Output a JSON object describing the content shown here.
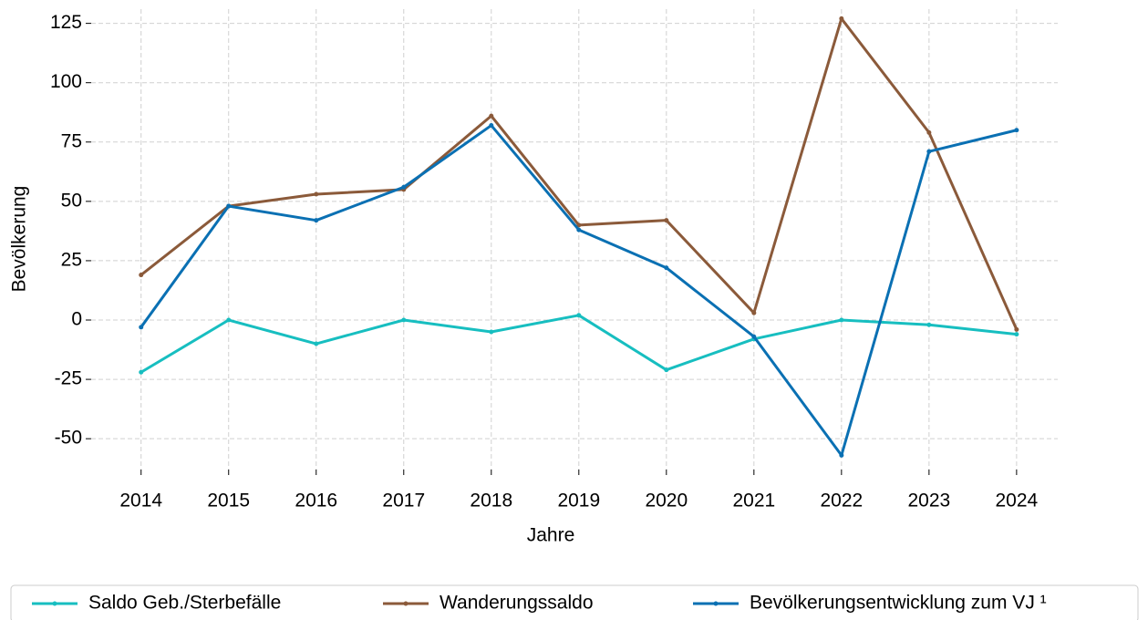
{
  "chart_data": {
    "type": "line",
    "xlabel": "Jahre",
    "ylabel": "Bevölkerung",
    "x": [
      2014,
      2015,
      2016,
      2017,
      2018,
      2019,
      2020,
      2021,
      2022,
      2023,
      2024
    ],
    "series": [
      {
        "name": "Saldo Geb./Sterbefälle",
        "color": "#17bec0",
        "values": [
          -22,
          0,
          -10,
          0,
          -5,
          2,
          -21,
          -8,
          0,
          -2,
          -6
        ]
      },
      {
        "name": "Wanderungssaldo",
        "color": "#8b5a3a",
        "values": [
          19,
          48,
          53,
          55,
          86,
          40,
          42,
          3,
          127,
          79,
          -4
        ]
      },
      {
        "name": "Bevölkerungsentwicklung zum VJ ¹",
        "color": "#0a70b3",
        "values": [
          -3,
          48,
          42,
          56,
          82,
          38,
          22,
          -7,
          -57,
          71,
          80
        ]
      }
    ],
    "xlim": [
      2013.43,
      2024.47
    ],
    "xticks": [
      2014,
      2015,
      2016,
      2017,
      2018,
      2019,
      2020,
      2021,
      2022,
      2023,
      2024
    ],
    "ylim": [
      -63,
      131
    ],
    "yticks": [
      -50,
      -25,
      0,
      25,
      50,
      75,
      100,
      125
    ],
    "grid": true,
    "legend": "bottom"
  }
}
